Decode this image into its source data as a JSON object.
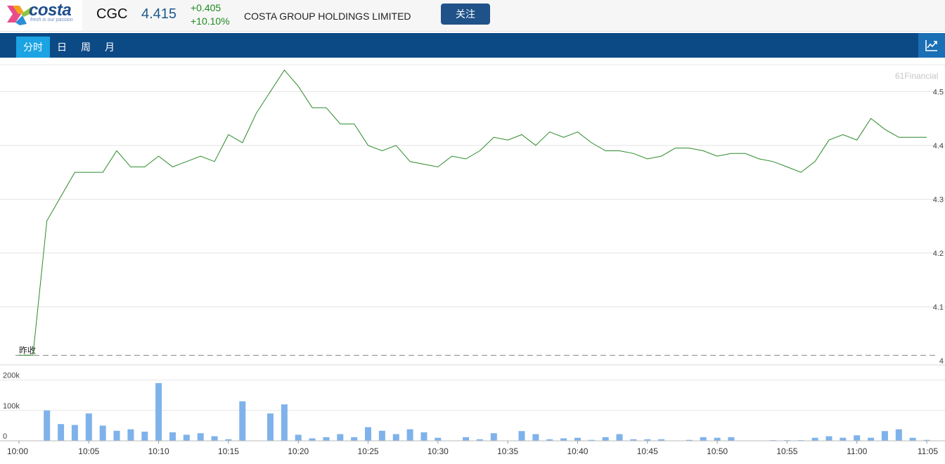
{
  "header": {
    "logo_text": "costa",
    "logo_tagline": "fresh is our passion",
    "symbol": "CGC",
    "price": "4.415",
    "change": "+0.405",
    "change_pct": "+10.10%",
    "company_name": "COSTA GROUP HOLDINGS LIMITED",
    "follow_label": "关注"
  },
  "tabs": [
    {
      "label": "分时",
      "active": true
    },
    {
      "label": "日",
      "active": false
    },
    {
      "label": "周",
      "active": false
    },
    {
      "label": "月",
      "active": false
    }
  ],
  "chart_button_icon": "line-chart-icon",
  "brand": "61Financial",
  "colors": {
    "price_line": "#2a8a2a",
    "volume_bar": "#7fb2ea",
    "tab_bar": "#0c4a86",
    "active_tab": "#1ba3e3",
    "change": "#1f8a1f"
  },
  "chart_data": [
    {
      "type": "line",
      "prev_close_label": "昨收",
      "prev_close": 4.01,
      "ylim": [
        4.0,
        4.55
      ],
      "y_ticks": [
        "4",
        "4.1",
        "4.2",
        "4.3",
        "4.4",
        "4.5"
      ],
      "x_ticks": [
        "10:00",
        "10:05",
        "10:10",
        "10:15",
        "10:20",
        "10:25",
        "10:30",
        "10:35",
        "10:40",
        "10:45",
        "10:50",
        "10:55",
        "11:00",
        "11:05"
      ],
      "x_minutes_range": [
        0,
        65
      ],
      "grid": true,
      "series": [
        {
          "x": [
            0,
            1,
            2,
            3,
            4,
            5,
            6,
            7,
            8,
            9,
            10,
            11,
            12,
            13,
            14,
            15,
            16,
            17,
            18,
            19,
            20,
            21,
            22,
            23,
            24,
            25,
            26,
            27,
            28,
            29,
            30,
            31,
            32,
            33,
            34,
            35,
            36,
            37,
            38,
            39,
            40,
            41,
            42,
            43,
            44,
            45,
            46,
            47,
            48,
            49,
            50,
            51,
            52,
            53,
            54,
            55,
            56,
            57,
            58,
            59,
            60,
            61,
            62,
            63,
            64,
            65
          ],
          "y": [
            4.01,
            4.01,
            4.26,
            4.305,
            4.35,
            4.35,
            4.35,
            4.39,
            4.36,
            4.36,
            4.38,
            4.36,
            4.37,
            4.38,
            4.37,
            4.42,
            4.405,
            4.46,
            4.5,
            4.54,
            4.51,
            4.47,
            4.47,
            4.44,
            4.44,
            4.4,
            4.39,
            4.4,
            4.37,
            4.365,
            4.36,
            4.38,
            4.375,
            4.39,
            4.415,
            4.41,
            4.42,
            4.4,
            4.425,
            4.415,
            4.425,
            4.405,
            4.39,
            4.39,
            4.385,
            4.375,
            4.38,
            4.395,
            4.395,
            4.39,
            4.38,
            4.385,
            4.385,
            4.375,
            4.37,
            4.36,
            4.35,
            4.37,
            4.41,
            4.42,
            4.41,
            4.45,
            4.43,
            4.415,
            4.415,
            4.415
          ]
        }
      ]
    },
    {
      "type": "bar",
      "y_ticks": [
        "0",
        "100k",
        "200k"
      ],
      "ylim": [
        0,
        250000
      ],
      "series": [
        {
          "x": [
            0,
            1,
            2,
            3,
            4,
            5,
            6,
            7,
            8,
            9,
            10,
            11,
            12,
            13,
            14,
            15,
            16,
            17,
            18,
            19,
            20,
            21,
            22,
            23,
            24,
            25,
            26,
            27,
            28,
            29,
            30,
            31,
            32,
            33,
            34,
            35,
            36,
            37,
            38,
            39,
            40,
            41,
            42,
            43,
            44,
            45,
            46,
            47,
            48,
            49,
            50,
            51,
            52,
            53,
            54,
            55,
            56,
            57,
            58,
            59,
            60,
            61,
            62,
            63,
            64,
            65
          ],
          "values": [
            0,
            0,
            100000,
            55000,
            52000,
            90000,
            50000,
            33000,
            38000,
            30000,
            190000,
            28000,
            20000,
            25000,
            15000,
            5000,
            130000,
            0,
            90000,
            120000,
            20000,
            8000,
            12000,
            22000,
            12000,
            45000,
            33000,
            22000,
            38000,
            28000,
            10000,
            0,
            12000,
            5000,
            25000,
            0,
            32000,
            22000,
            5000,
            8000,
            10000,
            3000,
            12000,
            22000,
            5000,
            5000,
            5000,
            0,
            3000,
            12000,
            10000,
            12000,
            0,
            0,
            2000,
            2000,
            2000,
            10000,
            15000,
            10000,
            18000,
            10000,
            32000,
            38000,
            10000,
            3000
          ]
        }
      ]
    }
  ]
}
